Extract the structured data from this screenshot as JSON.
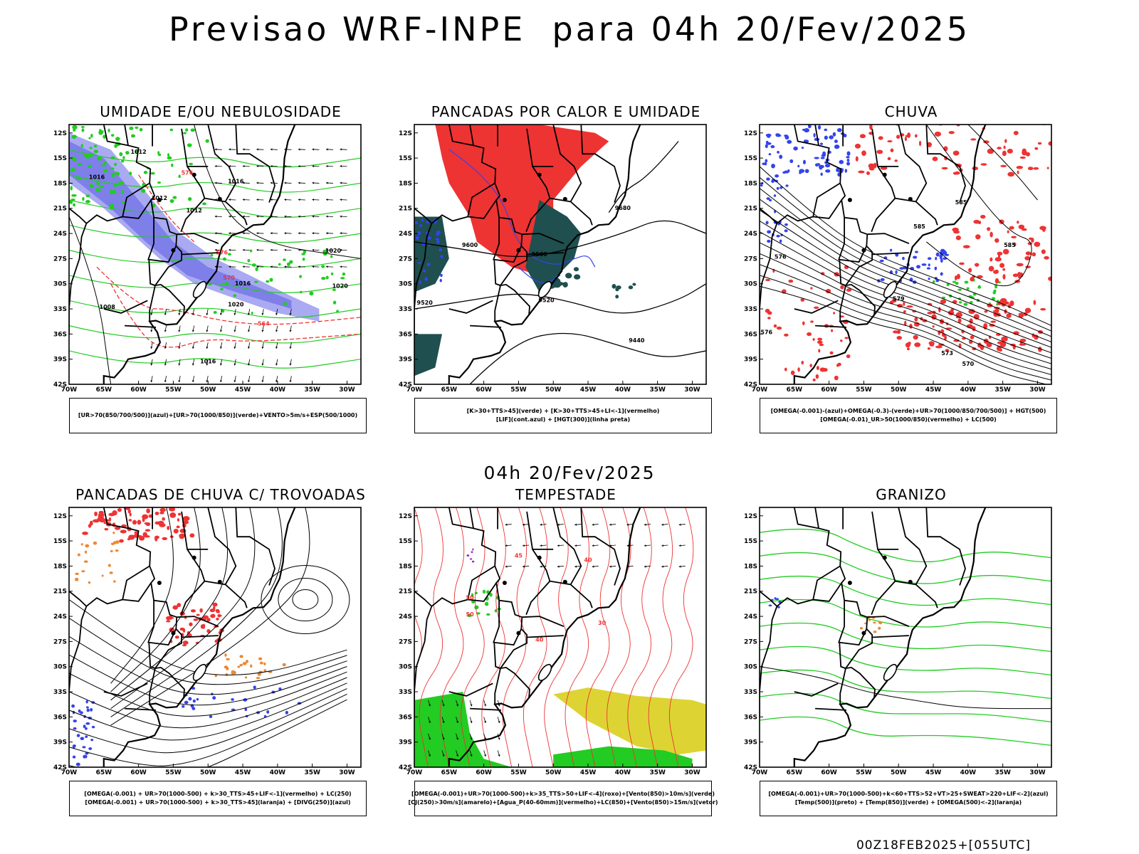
{
  "title": "Previsao WRF-INPE  para 04h 20/Fev/2025",
  "mid_title": "04h 20/Fev/2025",
  "footer": "00Z18FEB2025+[055UTC]",
  "axes": {
    "lat_ticks": [
      "12S",
      "15S",
      "18S",
      "21S",
      "24S",
      "27S",
      "30S",
      "33S",
      "36S",
      "39S",
      "42S"
    ],
    "lon_ticks": [
      "70W",
      "65W",
      "60W",
      "55W",
      "50W",
      "45W",
      "40W",
      "35W",
      "30W"
    ]
  },
  "colors": {
    "blue": "#3344ee",
    "lilac": "#9b9bf0",
    "green": "#22cc22",
    "red": "#ee3333",
    "darkteal": "#1f4f4f",
    "orange": "#ee8833",
    "yellow": "#ddd433",
    "purple": "#9922cc"
  },
  "panels": [
    {
      "id": "umidade",
      "title": "UMIDADE E/OU NEBULOSIDADE",
      "legend": [
        "[UR>70(850/700/500)](azul)+[UR>70(1000/850)](verde)+VENTO>5m/s+ESP(500/1000)"
      ],
      "contour_labels": [
        "1012",
        "1016",
        "1012",
        "1012",
        "1016",
        "1020",
        "1020",
        "1008",
        "1016",
        "1016",
        "1020",
        "576",
        "576",
        "570",
        "564"
      ]
    },
    {
      "id": "pancadas_calor",
      "title": "PANCADAS POR CALOR E UMIDADE",
      "legend": [
        "[K>30+TTS>45](verde) + [K>30+TTS>45+LI<-1](vermelho)",
        "[LIF](cont.azul) + [HGT(300)](linha preta)"
      ],
      "contour_labels": [
        "9680",
        "9600",
        "9520",
        "9440",
        "9560",
        "9520"
      ]
    },
    {
      "id": "chuva",
      "title": "CHUVA",
      "legend": [
        "[OMEGA(-0.001)-(azul)+OMEGA(-0.3)-(verde)+UR>70(1000/850/700/500)] + HGT(500)",
        "[OMEGA(-0.01)_UR>50(1000/850)(vermelho) + LC(500)"
      ],
      "contour_labels": [
        "585",
        "585",
        "585",
        "579",
        "576",
        "576",
        "573",
        "570"
      ]
    },
    {
      "id": "trovoadas",
      "title": "PANCADAS DE CHUVA C/ TROVOADAS",
      "legend": [
        "[OMEGA(-0.001) + UR>70(1000-500) + k>30_TTS>45+LIF<-1](vermelho) + LC(250)",
        "[OMEGA(-0.001) + UR>70(1000-500) + k>30_TTS>45](laranja) + [DIVG(250)](azul)"
      ],
      "contour_labels": []
    },
    {
      "id": "tempestade",
      "title": "TEMPESTADE",
      "legend": [
        "[OMEGA(-0.001)+UR>70(1000-500)+k>35_TTS>50+LIF<-4](roxo)+[Vento(850)>10m/s](verde)",
        "[CJ(250)>30m/s](amarelo)+[Agua_P(40-60mm)](vermelho)+LC(850)+[Vento(850)>15m/s](vetor)"
      ],
      "contour_labels": [
        "50",
        "45",
        "40",
        "50",
        "40",
        "30"
      ]
    },
    {
      "id": "granizo",
      "title": "GRANIZO",
      "legend": [
        "[OMEGA(-0.001)+UR>70(1000-500)+k<60+TTS>52+VT>25+SWEAT>220+LIF<-2](azul)",
        "[Temp(500)](preto) + [Temp(850)](verde) + [OMEGA(500)<-2](laranja)"
      ],
      "contour_labels": []
    }
  ]
}
